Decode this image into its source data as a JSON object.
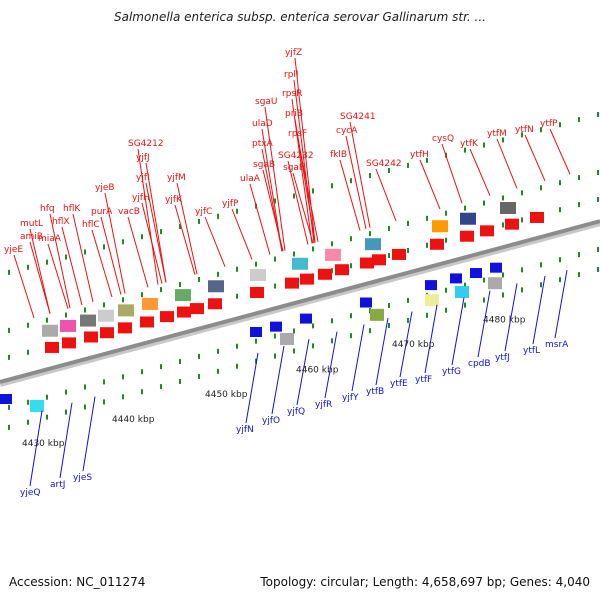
{
  "title": "Salmonella enterica subsp. enterica serovar Gallinarum str. ...",
  "footer": {
    "accession": "Accession: NC_011274",
    "info": "Topology: circular; Length: 4,658,697 bp; Genes: 4,040"
  },
  "colors": {
    "forward": "#ee1111",
    "reverse": "#1111dd",
    "backbone": "#8c8c8c",
    "tick": "#228822"
  },
  "scale_labels": [
    "4430 kbp",
    "4440 kbp",
    "4450 kbp",
    "4460 kbp",
    "4470 kbp",
    "4480 kbp"
  ],
  "forward_genes": [
    "yjeE",
    "amiB",
    "mutL",
    "miaA",
    "hfq",
    "hflX",
    "hflK",
    "hflC",
    "yjeB",
    "purA",
    "vacB",
    "SG4212",
    "yjfJ",
    "yjfI",
    "yjfH",
    "yjfK",
    "yjfM",
    "yjfC",
    "yjfP",
    "ulaA",
    "sgaB",
    "ptxA",
    "ulaD",
    "sgaU",
    "rplI",
    "yjfZ",
    "rpsR",
    "priB",
    "rpsF",
    "SG4232",
    "sgaE",
    "fklB",
    "cycA",
    "SG4241",
    "SG4242",
    "ytfH",
    "cysQ",
    "ytfK",
    "ytfM",
    "ytfN",
    "ytfP"
  ],
  "reverse_genes": [
    "yjeQ",
    "artJ",
    "yjeS",
    "yjfN",
    "yjfO",
    "yjfQ",
    "yjfR",
    "yjfY",
    "ytfB",
    "ytfE",
    "ytfF",
    "ytfG",
    "cpdB",
    "ytfJ",
    "ytfL",
    "msrA"
  ]
}
